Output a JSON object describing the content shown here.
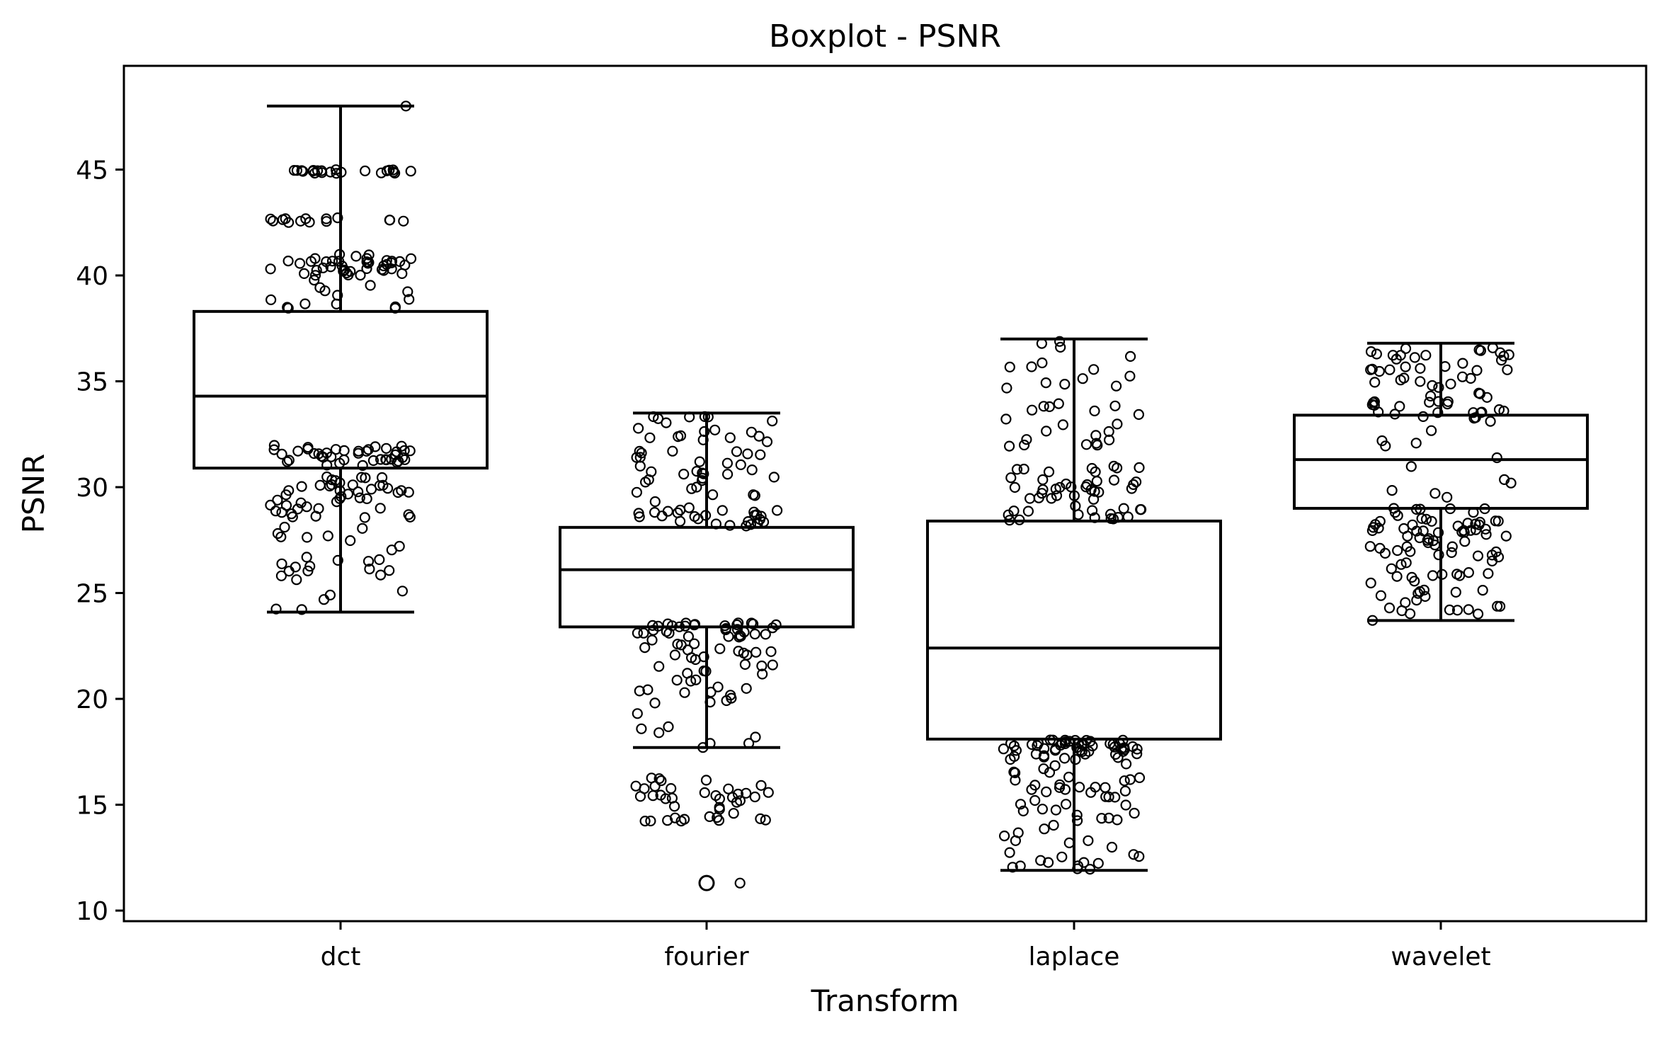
{
  "chart_data": {
    "type": "boxplot",
    "title": "Boxplot - PSNR",
    "xlabel": "Transform",
    "ylabel": "PSNR",
    "ylim": [
      9.5,
      49.9
    ],
    "yticks": [
      10,
      15,
      20,
      25,
      30,
      35,
      40,
      45
    ],
    "categories": [
      "dct",
      "fourier",
      "laplace",
      "wavelet"
    ],
    "boxes": [
      {
        "category": "dct",
        "whisker_low": 24.1,
        "q1": 30.9,
        "median": 34.3,
        "q3": 38.3,
        "whisker_high": 48.0,
        "fliers": []
      },
      {
        "category": "fourier",
        "whisker_low": 17.7,
        "q1": 23.4,
        "median": 26.1,
        "q3": 28.1,
        "whisker_high": 33.5,
        "fliers": [
          11.3
        ]
      },
      {
        "category": "laplace",
        "whisker_low": 11.9,
        "q1": 18.1,
        "median": 22.4,
        "q3": 28.4,
        "whisker_high": 37.0,
        "fliers": []
      },
      {
        "category": "wavelet",
        "whisker_low": 23.7,
        "q1": 29.0,
        "median": 31.3,
        "q3": 33.4,
        "whisker_high": 36.8,
        "fliers": []
      }
    ],
    "points_overlay": "jittered open circles for each observation",
    "grid": false,
    "colors": {
      "box_fill": "#ffffff",
      "stroke": "#000000",
      "point_edge": "#000000"
    }
  }
}
